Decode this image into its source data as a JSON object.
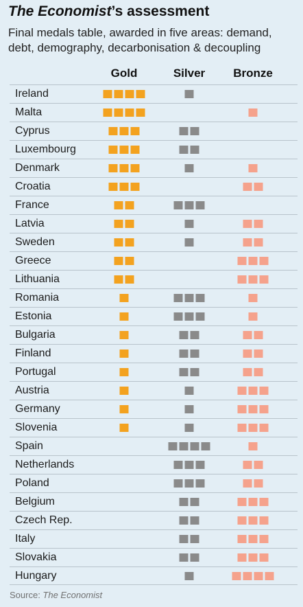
{
  "title": {
    "italic": "The Economist",
    "rest": "’s assessment"
  },
  "subtitle_lines": [
    "Final medals table, awarded in five areas: demand,",
    "debt, demography, decarbonisation & decoupling"
  ],
  "source": {
    "prefix": "Source: ",
    "italic": "The Economist"
  },
  "colors": {
    "background": "#e3eef5",
    "gold": "#f3a21f",
    "silver": "#8a8a8a",
    "bronze": "#f5a28c"
  },
  "chart_data": {
    "type": "table",
    "title": "The Economist’s assessment",
    "subtitle": "Final medals table, awarded in five areas: demand, debt, demography, decarbonisation & decoupling",
    "columns": [
      "Gold",
      "Silver",
      "Bronze"
    ],
    "rows": [
      {
        "country": "Ireland",
        "gold": 4,
        "silver": 1,
        "bronze": 0
      },
      {
        "country": "Malta",
        "gold": 4,
        "silver": 0,
        "bronze": 1
      },
      {
        "country": "Cyprus",
        "gold": 3,
        "silver": 2,
        "bronze": 0
      },
      {
        "country": "Luxembourg",
        "gold": 3,
        "silver": 2,
        "bronze": 0
      },
      {
        "country": "Denmark",
        "gold": 3,
        "silver": 1,
        "bronze": 1
      },
      {
        "country": "Croatia",
        "gold": 3,
        "silver": 0,
        "bronze": 2
      },
      {
        "country": "France",
        "gold": 2,
        "silver": 3,
        "bronze": 0
      },
      {
        "country": "Latvia",
        "gold": 2,
        "silver": 1,
        "bronze": 2
      },
      {
        "country": "Sweden",
        "gold": 2,
        "silver": 1,
        "bronze": 2
      },
      {
        "country": "Greece",
        "gold": 2,
        "silver": 0,
        "bronze": 3
      },
      {
        "country": "Lithuania",
        "gold": 2,
        "silver": 0,
        "bronze": 3
      },
      {
        "country": "Romania",
        "gold": 1,
        "silver": 3,
        "bronze": 1
      },
      {
        "country": "Estonia",
        "gold": 1,
        "silver": 3,
        "bronze": 1
      },
      {
        "country": "Bulgaria",
        "gold": 1,
        "silver": 2,
        "bronze": 2
      },
      {
        "country": "Finland",
        "gold": 1,
        "silver": 2,
        "bronze": 2
      },
      {
        "country": "Portugal",
        "gold": 1,
        "silver": 2,
        "bronze": 2
      },
      {
        "country": "Austria",
        "gold": 1,
        "silver": 1,
        "bronze": 3
      },
      {
        "country": "Germany",
        "gold": 1,
        "silver": 1,
        "bronze": 3
      },
      {
        "country": "Slovenia",
        "gold": 1,
        "silver": 1,
        "bronze": 3
      },
      {
        "country": "Spain",
        "gold": 0,
        "silver": 4,
        "bronze": 1
      },
      {
        "country": "Netherlands",
        "gold": 0,
        "silver": 3,
        "bronze": 2
      },
      {
        "country": "Poland",
        "gold": 0,
        "silver": 3,
        "bronze": 2
      },
      {
        "country": "Belgium",
        "gold": 0,
        "silver": 2,
        "bronze": 3
      },
      {
        "country": "Czech Rep.",
        "gold": 0,
        "silver": 2,
        "bronze": 3
      },
      {
        "country": "Italy",
        "gold": 0,
        "silver": 2,
        "bronze": 3
      },
      {
        "country": "Slovakia",
        "gold": 0,
        "silver": 2,
        "bronze": 3
      },
      {
        "country": "Hungary",
        "gold": 0,
        "silver": 1,
        "bronze": 4
      }
    ]
  }
}
